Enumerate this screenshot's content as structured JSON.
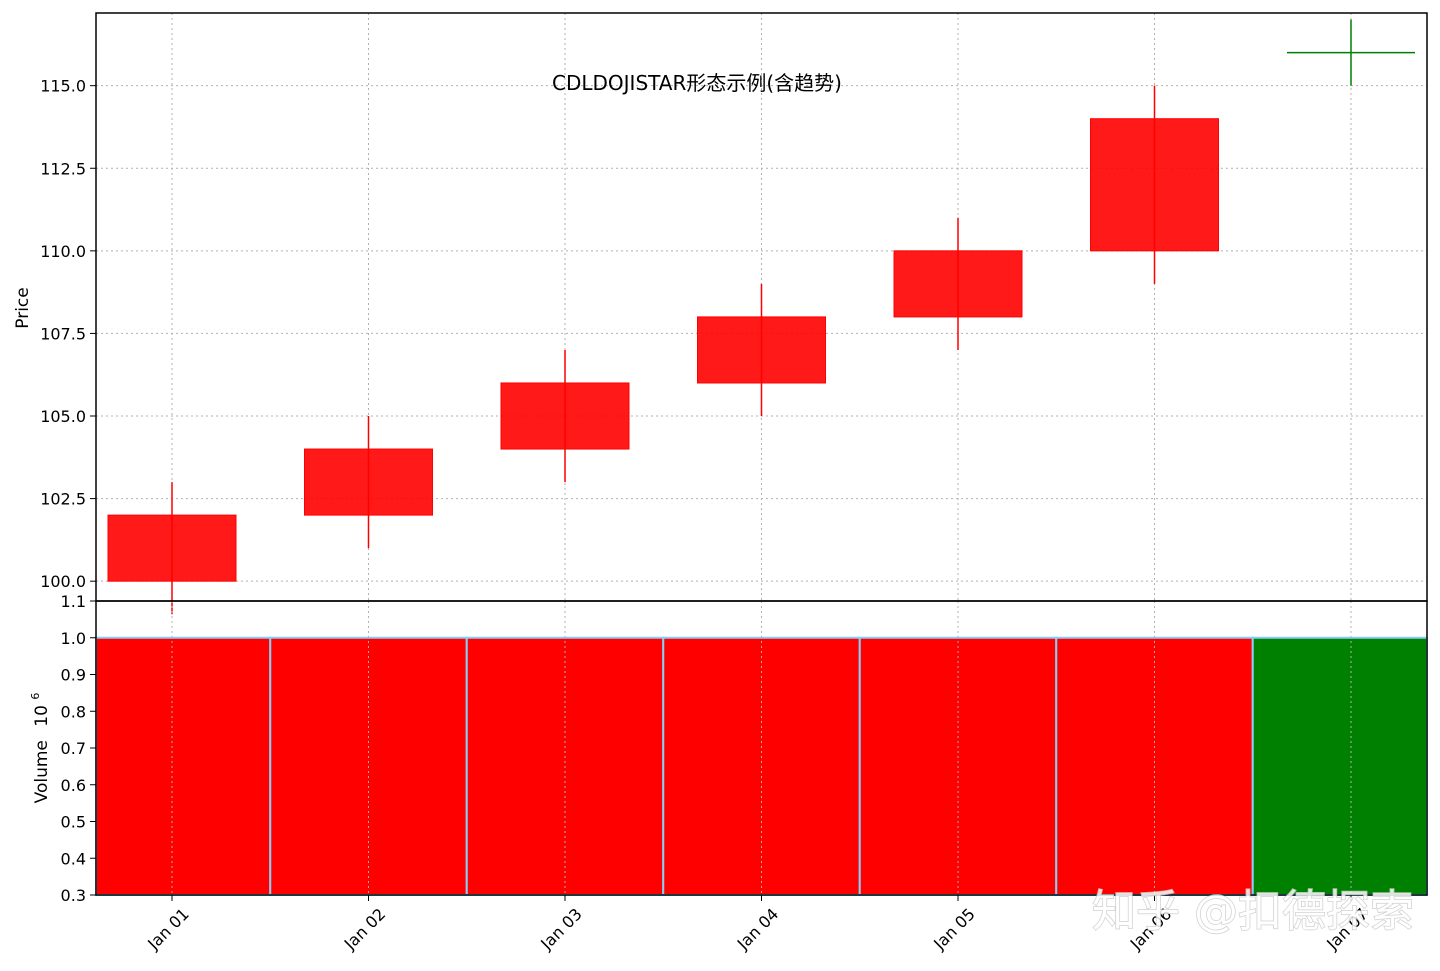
{
  "chart_data": {
    "type": "candlestick",
    "title": "CDLDOJISTAR形态示例(含趋势)",
    "categories": [
      "Jan 01",
      "Jan 02",
      "Jan 03",
      "Jan 04",
      "Jan 05",
      "Jan 06",
      "Jan 07"
    ],
    "price": {
      "ylabel": "Price",
      "ylim": [
        99.4,
        117.2
      ],
      "yticks": [
        "100.0",
        "102.5",
        "105.0",
        "107.5",
        "110.0",
        "112.5",
        "115.0"
      ],
      "grid": true,
      "candles": [
        {
          "open": 100,
          "high": 103,
          "low": 99,
          "close": 102
        },
        {
          "open": 102,
          "high": 105,
          "low": 101,
          "close": 104
        },
        {
          "open": 104,
          "high": 107,
          "low": 103,
          "close": 106
        },
        {
          "open": 106,
          "high": 109,
          "low": 105,
          "close": 108
        },
        {
          "open": 108,
          "high": 111,
          "low": 107,
          "close": 110
        },
        {
          "open": 110,
          "high": 115,
          "low": 109,
          "close": 114
        },
        {
          "open": 116,
          "high": 117,
          "low": 115,
          "close": 116
        }
      ],
      "up_color": "#ff0000",
      "doji_color": "#008000"
    },
    "volume": {
      "ylabel": "Volume",
      "scale_label": "10",
      "scale_exp": "6",
      "ylim": [
        0.3,
        1.1
      ],
      "yticks": [
        "0.3",
        "0.4",
        "0.5",
        "0.6",
        "0.7",
        "0.8",
        "0.9",
        "1.0",
        "1.1"
      ],
      "values": [
        1.0,
        1.0,
        1.0,
        1.0,
        1.0,
        1.0,
        1.0
      ],
      "colors": [
        "#ff0000",
        "#ff0000",
        "#ff0000",
        "#ff0000",
        "#ff0000",
        "#ff0000",
        "#008000"
      ],
      "edge_color": "#87cefa"
    }
  },
  "watermark": "知乎 @扣德探索"
}
